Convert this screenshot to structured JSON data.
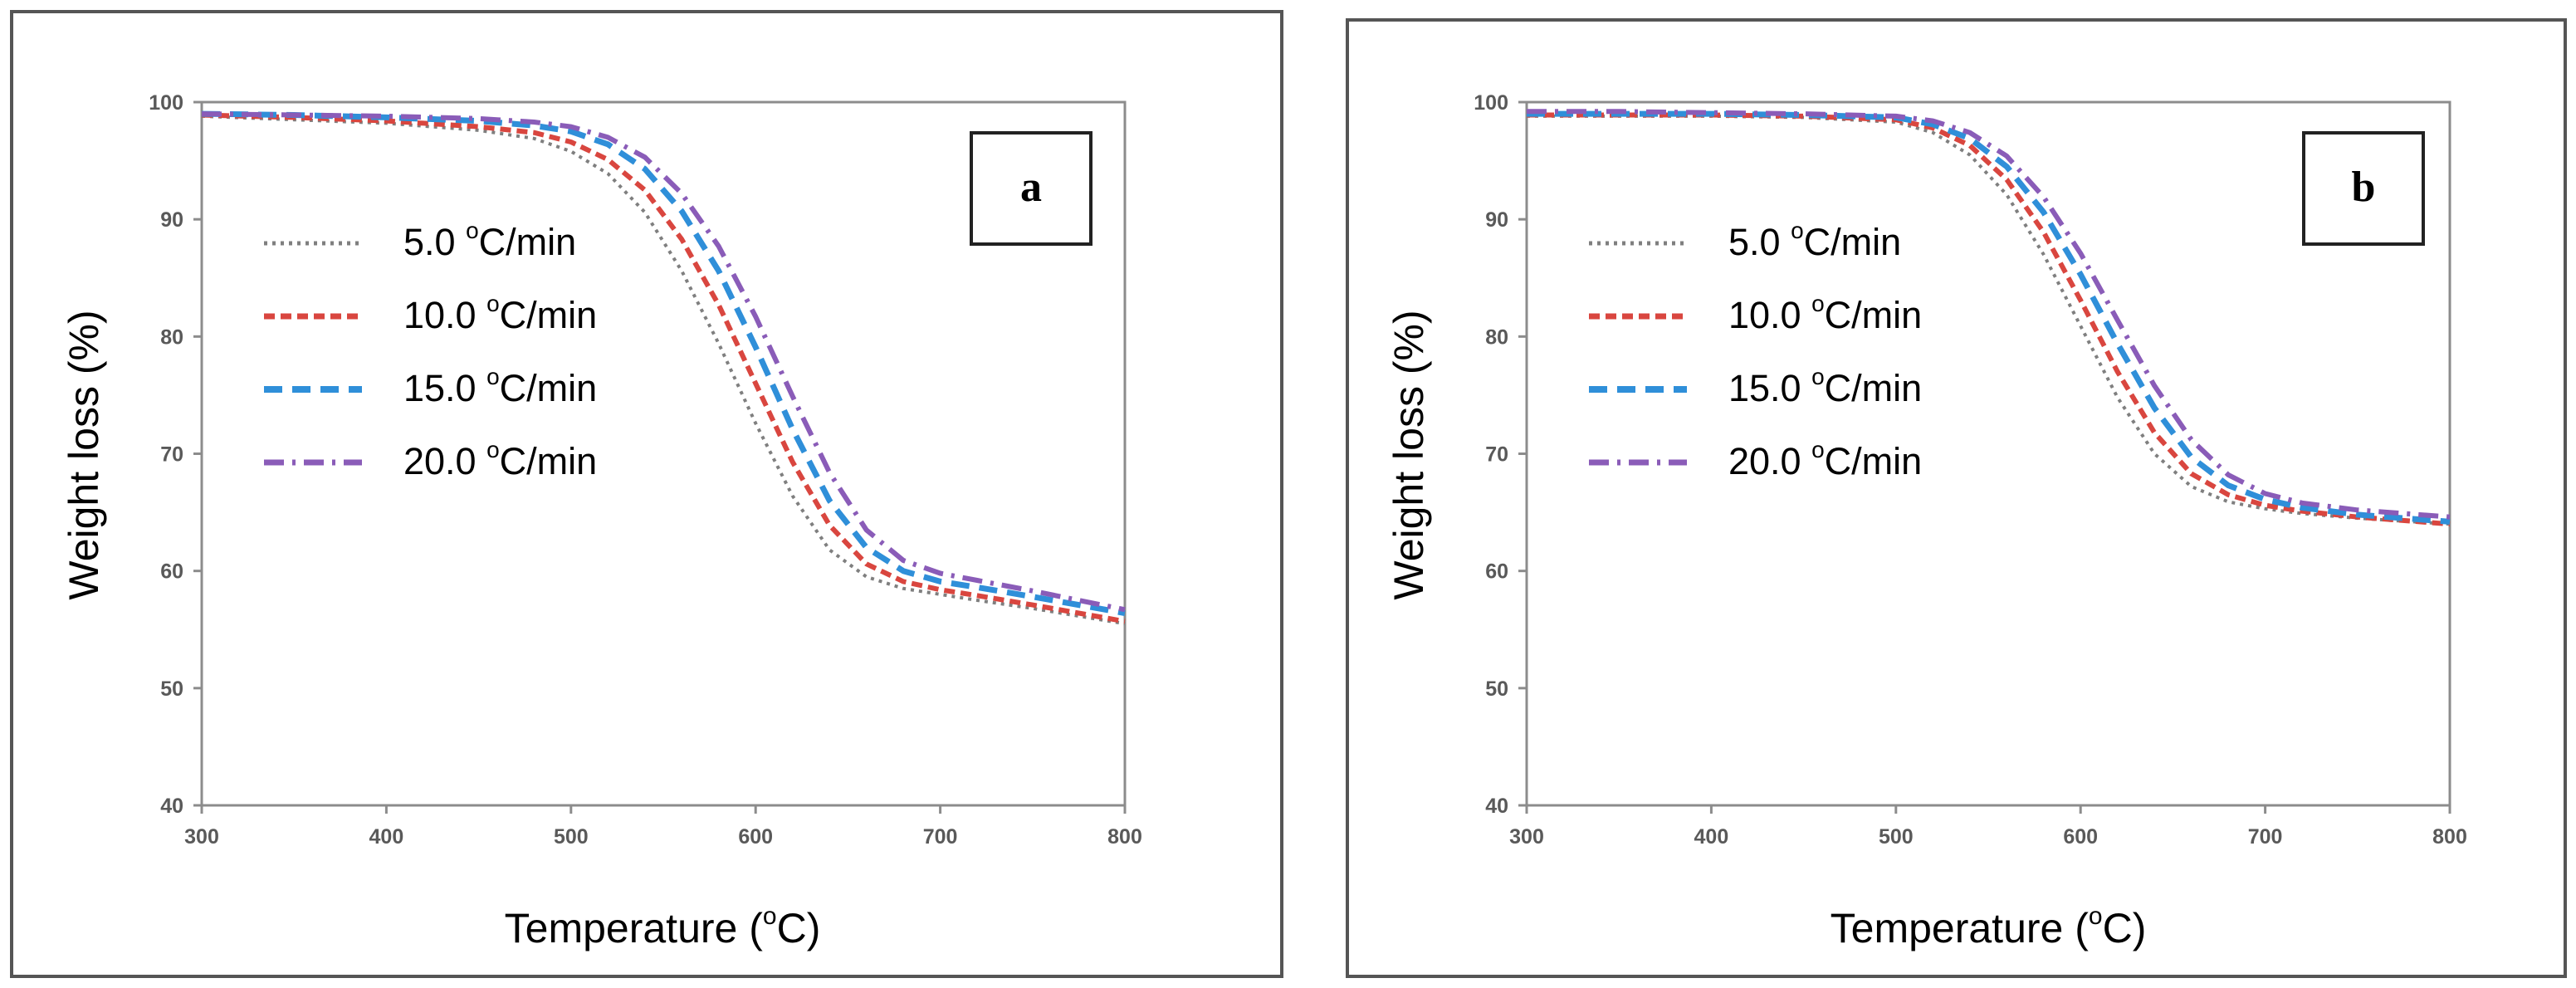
{
  "colors": {
    "5.0": "#7f7f7f",
    "10.0": "#d9463f",
    "15.0": "#2f8fd9",
    "20.0": "#8a5cb8",
    "axis": "#8c8c8c",
    "frame": "#555555"
  },
  "chart_data": [
    {
      "type": "line",
      "panel_label": "a",
      "xlabel": "Temperature",
      "xlabel_unit": "C",
      "xlabel_unit_sup": "o",
      "ylabel": "Weight loss (%)",
      "xlim": [
        300,
        800
      ],
      "ylim": [
        40,
        100
      ],
      "xticks": [
        "300",
        "400",
        "500",
        "600",
        "700",
        "800"
      ],
      "yticks": [
        "40",
        "50",
        "60",
        "70",
        "80",
        "90",
        "100"
      ],
      "legend": [
        {
          "rate": "5.0",
          "unit": "C/min",
          "sup": "o"
        },
        {
          "rate": "10.0",
          "unit": "C/min",
          "sup": "o"
        },
        {
          "rate": "15.0",
          "unit": "C/min",
          "sup": "o"
        },
        {
          "rate": "20.0",
          "unit": "C/min",
          "sup": "o"
        }
      ],
      "x": [
        300,
        350,
        400,
        450,
        480,
        500,
        520,
        540,
        560,
        580,
        600,
        620,
        640,
        660,
        680,
        700,
        720,
        750,
        800
      ],
      "series": [
        {
          "name": "5.0 °C/min",
          "values": [
            98.8,
            98.5,
            98.2,
            97.6,
            96.9,
            95.8,
            93.9,
            90.6,
            85.6,
            79.4,
            72.6,
            66.4,
            61.8,
            59.5,
            58.5,
            58.0,
            57.5,
            56.8,
            55.5
          ]
        },
        {
          "name": "10.0 °C/min",
          "values": [
            98.9,
            98.7,
            98.4,
            97.9,
            97.4,
            96.6,
            95.1,
            92.5,
            88.3,
            82.7,
            76.0,
            69.3,
            63.9,
            60.6,
            59.1,
            58.4,
            57.9,
            57.1,
            55.7
          ]
        },
        {
          "name": "15.0 °C/min",
          "values": [
            99.0,
            98.9,
            98.7,
            98.4,
            98.0,
            97.5,
            96.4,
            94.3,
            90.7,
            85.6,
            79.1,
            72.1,
            66.0,
            62.0,
            60.0,
            59.1,
            58.6,
            57.8,
            56.4
          ]
        },
        {
          "name": "20.0 °C/min",
          "values": [
            99.0,
            98.9,
            98.8,
            98.6,
            98.3,
            97.9,
            97.0,
            95.3,
            92.2,
            87.7,
            81.7,
            74.9,
            68.4,
            63.5,
            60.9,
            59.8,
            59.2,
            58.3,
            56.7
          ]
        }
      ]
    },
    {
      "type": "line",
      "panel_label": "b",
      "xlabel": "Temperature",
      "xlabel_unit": "C",
      "xlabel_unit_sup": "o",
      "ylabel": "Weight loss (%)",
      "xlim": [
        300,
        800
      ],
      "ylim": [
        40,
        100
      ],
      "xticks": [
        "300",
        "400",
        "500",
        "600",
        "700",
        "800"
      ],
      "yticks": [
        "40",
        "50",
        "60",
        "70",
        "80",
        "90",
        "100"
      ],
      "legend": [
        {
          "rate": "5.0",
          "unit": "C/min",
          "sup": "o"
        },
        {
          "rate": "10.0",
          "unit": "C/min",
          "sup": "o"
        },
        {
          "rate": "15.0",
          "unit": "C/min",
          "sup": "o"
        },
        {
          "rate": "20.0",
          "unit": "C/min",
          "sup": "o"
        }
      ],
      "x": [
        300,
        350,
        400,
        450,
        500,
        520,
        540,
        560,
        580,
        600,
        620,
        640,
        660,
        680,
        700,
        720,
        750,
        800
      ],
      "series": [
        {
          "name": "5.0 °C/min",
          "values": [
            98.8,
            98.8,
            98.8,
            98.7,
            98.3,
            97.4,
            95.5,
            92.1,
            87.0,
            80.9,
            74.8,
            70.0,
            67.2,
            65.9,
            65.3,
            64.9,
            64.5,
            64.0
          ]
        },
        {
          "name": "10.0 °C/min",
          "values": [
            98.9,
            98.9,
            98.9,
            98.8,
            98.5,
            97.8,
            96.3,
            93.4,
            88.9,
            83.1,
            77.0,
            71.8,
            68.3,
            66.5,
            65.6,
            65.1,
            64.6,
            64.0
          ]
        },
        {
          "name": "15.0 °C/min",
          "values": [
            99.0,
            99.0,
            99.0,
            98.9,
            98.7,
            98.1,
            96.9,
            94.5,
            90.6,
            85.3,
            79.4,
            73.9,
            69.7,
            67.3,
            66.1,
            65.4,
            64.8,
            64.2
          ]
        },
        {
          "name": "20.0 °C/min",
          "values": [
            99.2,
            99.2,
            99.1,
            99.0,
            98.8,
            98.4,
            97.4,
            95.4,
            91.9,
            87.1,
            81.4,
            75.8,
            71.2,
            68.2,
            66.6,
            65.8,
            65.2,
            64.6
          ]
        }
      ]
    }
  ]
}
